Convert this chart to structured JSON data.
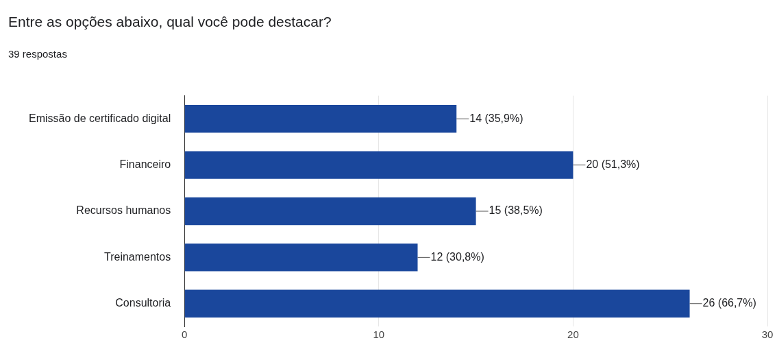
{
  "chart_data": {
    "type": "bar",
    "orientation": "horizontal",
    "title": "Entre as opções abaixo, qual você pode destacar?",
    "subtitle": "39 respostas",
    "categories": [
      "Emissão de certificado digital",
      "Financeiro",
      "Recursos humanos",
      "Treinamentos",
      "Consultoria"
    ],
    "values": [
      14,
      20,
      15,
      12,
      26
    ],
    "color": "#1a479c",
    "value_labels": [
      "14 (35,9%)",
      "20 (51,3%)",
      "15 (38,5%)",
      "12 (30,8%)",
      "26 (66,7%)"
    ],
    "xlim": [
      0,
      30
    ],
    "xticks": [
      0,
      10,
      20,
      30
    ],
    "grid": "x",
    "legend": false
  }
}
